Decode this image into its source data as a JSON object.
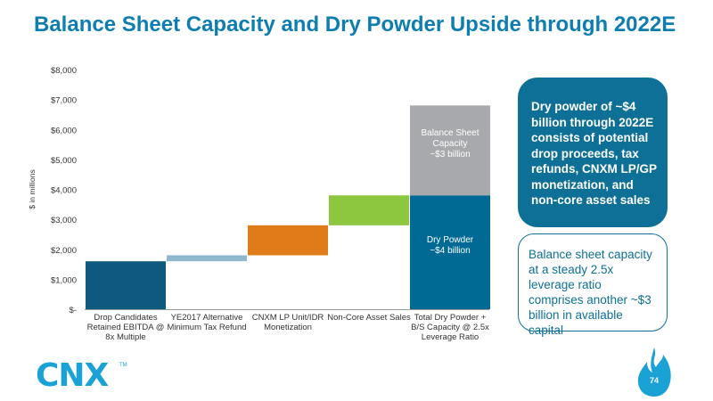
{
  "slide": {
    "title": "Balance Sheet Capacity and Dry Powder Upside through 2022E",
    "page_number": "74",
    "logo_text": "CNX",
    "logo_tm": "TM"
  },
  "callouts": {
    "filled": "Dry powder of ~$4 billion through 2022E consists of potential drop proceeds, tax refunds, CNXM LP/GP monetization, and non-core asset sales",
    "outline": "Balance sheet capacity at a steady 2.5x leverage ratio comprises another ~$3 billion in available capital"
  },
  "colors": {
    "title": "#0e7db0",
    "dark_blue": "#0e5a7e",
    "light_blue": "#8fb8cf",
    "orange": "#e07b1a",
    "green": "#8dc63f",
    "teal": "#006a94",
    "gray": "#a7a9ac",
    "logo": "#1aa1d6"
  },
  "chart_data": {
    "type": "bar",
    "subtype": "waterfall",
    "ylabel": "$ in millions",
    "ylim": [
      0,
      8000
    ],
    "yticks": [
      0,
      1000,
      2000,
      3000,
      4000,
      5000,
      6000,
      7000,
      8000
    ],
    "ytick_labels": [
      "$-",
      "$1,000",
      "$2,000",
      "$3,000",
      "$4,000",
      "$5,000",
      "$6,000",
      "$7,000",
      "$8,000"
    ],
    "grid": false,
    "categories": [
      [
        "Drop Candidates",
        "Retained EBITDA @",
        "8x Multiple"
      ],
      [
        "YE2017 Alternative",
        "Minimum Tax Refund"
      ],
      [
        "CNXM LP Unit/IDR",
        "Monetization"
      ],
      [
        "Non-Core Asset Sales"
      ],
      [
        "Total Dry Powder +",
        "B/S Capacity @ 2.5x",
        "Leverage Ratio"
      ]
    ],
    "bars": [
      {
        "base": 0,
        "value": 1600,
        "color": "#0e5a7e"
      },
      {
        "base": 1600,
        "value": 200,
        "color": "#8fb8cf"
      },
      {
        "base": 1800,
        "value": 1000,
        "color": "#e07b1a"
      },
      {
        "base": 2800,
        "value": 1000,
        "color": "#8dc63f"
      },
      {
        "base": 0,
        "value": 3800,
        "color": "#006a94",
        "label": [
          "Dry Powder",
          "~$4 billion"
        ]
      },
      {
        "base": 3800,
        "value": 3000,
        "color": "#a7a9ac",
        "label": [
          "Balance Sheet",
          "Capacity",
          "~$3 billion"
        ]
      }
    ],
    "bar_slots": [
      0,
      1,
      2,
      3,
      4,
      4
    ]
  }
}
